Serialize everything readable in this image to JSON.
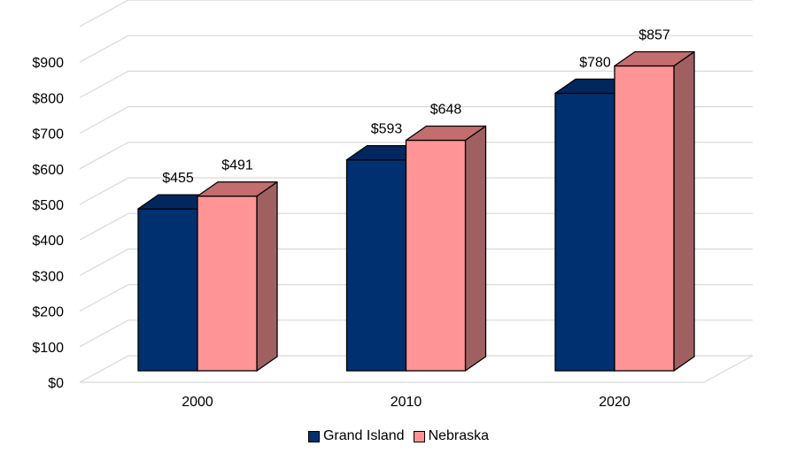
{
  "chart_data": {
    "type": "bar",
    "title": "",
    "xlabel": "",
    "ylabel": "",
    "categories": [
      "2000",
      "2010",
      "2020"
    ],
    "series": [
      {
        "name": "Grand Island",
        "values": [
          455,
          593,
          780
        ],
        "labels": [
          "$455",
          "$593",
          "$780"
        ],
        "color": "#003070",
        "top_color": "#00285e",
        "side_color": "#001e48"
      },
      {
        "name": "Nebraska",
        "values": [
          491,
          648,
          857
        ],
        "labels": [
          "$491",
          "$648",
          "$857"
        ],
        "color": "#ff9496",
        "top_color": "#c36d6f",
        "side_color": "#a06062"
      }
    ],
    "ylim": [
      0,
      1000
    ],
    "yticks": [
      0,
      100,
      200,
      300,
      400,
      500,
      600,
      700,
      800,
      900
    ],
    "ytick_labels": [
      "$0",
      "$100",
      "$200",
      "$300",
      "$400",
      "$500",
      "$600",
      "$700",
      "$800",
      "$900"
    ],
    "grid": true,
    "legend_position": "bottom"
  }
}
